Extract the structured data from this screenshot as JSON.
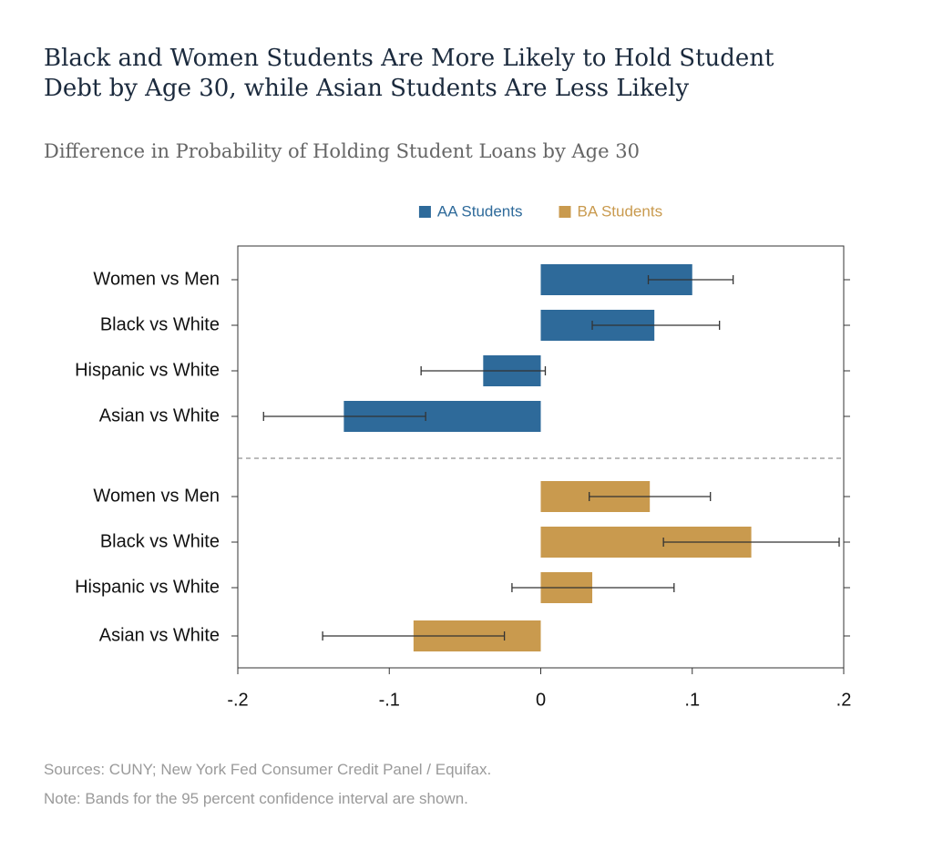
{
  "chart_data": {
    "type": "bar",
    "orientation": "horizontal",
    "title": "Black and Women Students Are More Likely to Hold Student Debt by Age 30, while Asian Students Are Less Likely",
    "subtitle": "Difference in Probability of Holding Student Loans by Age 30",
    "categories": [
      "Women vs Men",
      "Black vs White",
      "Hispanic vs White",
      "Asian vs White"
    ],
    "series": [
      {
        "name": "AA Students",
        "color": "#2e6a9a",
        "values": [
          0.1,
          0.075,
          -0.038,
          -0.13
        ],
        "ci_low": [
          0.071,
          0.034,
          -0.079,
          -0.183
        ],
        "ci_high": [
          0.127,
          0.118,
          0.003,
          -0.076
        ]
      },
      {
        "name": "BA Students",
        "color": "#c99a4e",
        "values": [
          0.072,
          0.139,
          0.034,
          -0.084
        ],
        "ci_low": [
          0.032,
          0.081,
          -0.019,
          -0.144
        ],
        "ci_high": [
          0.112,
          0.197,
          0.088,
          -0.024
        ]
      }
    ],
    "xlim": [
      -0.2,
      0.2
    ],
    "xticks": [
      {
        "value": -0.2,
        "label": "-.2"
      },
      {
        "value": -0.1,
        "label": "-.1"
      },
      0,
      {
        "value": 0.1,
        "label": ".1"
      },
      {
        "value": 0.2,
        "label": ".2"
      }
    ],
    "legend": "top",
    "sources": "Sources: CUNY; New York Fed Consumer Credit Panel / Equifax.",
    "note": "Note: Bands for the 95 percent confidence interval are shown."
  }
}
